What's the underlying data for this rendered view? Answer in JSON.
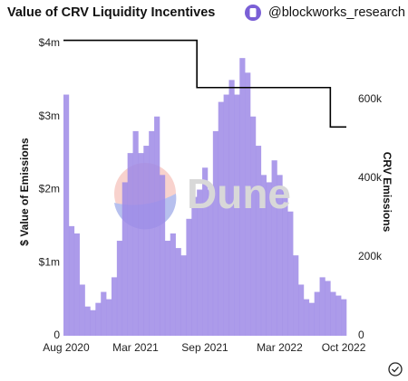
{
  "header": {
    "title": "Value of CRV Liquidity Incentives",
    "account": "@blockworks_research"
  },
  "chart_data": {
    "type": "bar",
    "watermark": "Dune",
    "ylabel": "$ Value of Emissions",
    "y2label": "CRV Emissions",
    "categories": [
      "Aug 2020",
      null,
      null,
      null,
      null,
      null,
      null,
      null,
      null,
      null,
      null,
      null,
      null,
      "Mar 2021",
      null,
      null,
      null,
      null,
      null,
      null,
      null,
      null,
      null,
      null,
      null,
      null,
      "Sep 2021",
      null,
      null,
      null,
      null,
      null,
      null,
      null,
      null,
      null,
      null,
      null,
      null,
      null,
      "Mar 2022",
      null,
      null,
      null,
      null,
      null,
      null,
      null,
      null,
      null,
      null,
      null,
      "Oct 2022"
    ],
    "series": [
      {
        "name": "Value of Emissions",
        "color": "#9d8ae6",
        "values": [
          3300000,
          1500000,
          1400000,
          700000,
          400000,
          350000,
          450000,
          600000,
          500000,
          800000,
          1300000,
          2100000,
          2500000,
          2800000,
          2500000,
          2600000,
          2800000,
          3000000,
          2200000,
          1300000,
          1400000,
          1200000,
          1100000,
          1600000,
          1900000,
          2000000,
          2300000,
          2000000,
          2800000,
          3200000,
          3300000,
          3500000,
          3300000,
          3800000,
          3600000,
          3000000,
          2600000,
          2200000,
          2100000,
          2400000,
          2200000,
          2000000,
          1700000,
          1100000,
          700000,
          500000,
          450000,
          600000,
          800000,
          750000,
          600000,
          550000,
          500000
        ]
      },
      {
        "name": "CRV Emissions",
        "color": "#000000",
        "axis": "y2",
        "values": [
          750000,
          750000,
          750000,
          750000,
          750000,
          750000,
          750000,
          750000,
          750000,
          750000,
          750000,
          750000,
          750000,
          750000,
          750000,
          750000,
          750000,
          750000,
          750000,
          750000,
          750000,
          750000,
          750000,
          750000,
          750000,
          630000,
          630000,
          630000,
          630000,
          630000,
          630000,
          630000,
          630000,
          630000,
          630000,
          630000,
          630000,
          630000,
          630000,
          630000,
          630000,
          630000,
          630000,
          630000,
          630000,
          630000,
          630000,
          630000,
          630000,
          630000,
          530000,
          530000,
          530000
        ]
      }
    ],
    "ylim": [
      0,
      4000000
    ],
    "yticks": [
      0,
      {
        "value": 1000000,
        "label": "$1m"
      },
      {
        "value": 2000000,
        "label": "$2m"
      },
      {
        "value": 3000000,
        "label": "$3m"
      },
      {
        "value": 4000000,
        "label": "$4m"
      }
    ],
    "y2lim": [
      0,
      742000
    ],
    "y2ticks": [
      0,
      {
        "value": 200000,
        "label": "200k"
      },
      {
        "value": 400000,
        "label": "400k"
      },
      {
        "value": 600000,
        "label": "600k"
      }
    ]
  }
}
